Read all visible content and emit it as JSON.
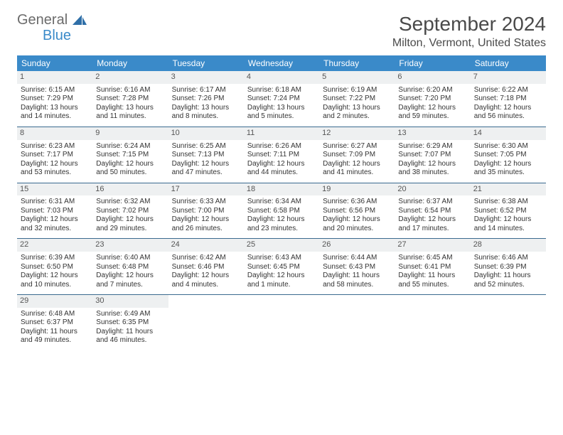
{
  "logo": {
    "text1": "General",
    "text2": "Blue"
  },
  "title": "September 2024",
  "location": "Milton, Vermont, United States",
  "colors": {
    "header_bg": "#3a8ac9",
    "header_text": "#ffffff",
    "daynum_bg": "#eef0f1",
    "rule": "#3a6a8f",
    "body_text": "#333333"
  },
  "weekdays": [
    "Sunday",
    "Monday",
    "Tuesday",
    "Wednesday",
    "Thursday",
    "Friday",
    "Saturday"
  ],
  "weeks": [
    [
      {
        "n": "1",
        "sr": "Sunrise: 6:15 AM",
        "ss": "Sunset: 7:29 PM",
        "d1": "Daylight: 13 hours",
        "d2": "and 14 minutes."
      },
      {
        "n": "2",
        "sr": "Sunrise: 6:16 AM",
        "ss": "Sunset: 7:28 PM",
        "d1": "Daylight: 13 hours",
        "d2": "and 11 minutes."
      },
      {
        "n": "3",
        "sr": "Sunrise: 6:17 AM",
        "ss": "Sunset: 7:26 PM",
        "d1": "Daylight: 13 hours",
        "d2": "and 8 minutes."
      },
      {
        "n": "4",
        "sr": "Sunrise: 6:18 AM",
        "ss": "Sunset: 7:24 PM",
        "d1": "Daylight: 13 hours",
        "d2": "and 5 minutes."
      },
      {
        "n": "5",
        "sr": "Sunrise: 6:19 AM",
        "ss": "Sunset: 7:22 PM",
        "d1": "Daylight: 13 hours",
        "d2": "and 2 minutes."
      },
      {
        "n": "6",
        "sr": "Sunrise: 6:20 AM",
        "ss": "Sunset: 7:20 PM",
        "d1": "Daylight: 12 hours",
        "d2": "and 59 minutes."
      },
      {
        "n": "7",
        "sr": "Sunrise: 6:22 AM",
        "ss": "Sunset: 7:18 PM",
        "d1": "Daylight: 12 hours",
        "d2": "and 56 minutes."
      }
    ],
    [
      {
        "n": "8",
        "sr": "Sunrise: 6:23 AM",
        "ss": "Sunset: 7:17 PM",
        "d1": "Daylight: 12 hours",
        "d2": "and 53 minutes."
      },
      {
        "n": "9",
        "sr": "Sunrise: 6:24 AM",
        "ss": "Sunset: 7:15 PM",
        "d1": "Daylight: 12 hours",
        "d2": "and 50 minutes."
      },
      {
        "n": "10",
        "sr": "Sunrise: 6:25 AM",
        "ss": "Sunset: 7:13 PM",
        "d1": "Daylight: 12 hours",
        "d2": "and 47 minutes."
      },
      {
        "n": "11",
        "sr": "Sunrise: 6:26 AM",
        "ss": "Sunset: 7:11 PM",
        "d1": "Daylight: 12 hours",
        "d2": "and 44 minutes."
      },
      {
        "n": "12",
        "sr": "Sunrise: 6:27 AM",
        "ss": "Sunset: 7:09 PM",
        "d1": "Daylight: 12 hours",
        "d2": "and 41 minutes."
      },
      {
        "n": "13",
        "sr": "Sunrise: 6:29 AM",
        "ss": "Sunset: 7:07 PM",
        "d1": "Daylight: 12 hours",
        "d2": "and 38 minutes."
      },
      {
        "n": "14",
        "sr": "Sunrise: 6:30 AM",
        "ss": "Sunset: 7:05 PM",
        "d1": "Daylight: 12 hours",
        "d2": "and 35 minutes."
      }
    ],
    [
      {
        "n": "15",
        "sr": "Sunrise: 6:31 AM",
        "ss": "Sunset: 7:03 PM",
        "d1": "Daylight: 12 hours",
        "d2": "and 32 minutes."
      },
      {
        "n": "16",
        "sr": "Sunrise: 6:32 AM",
        "ss": "Sunset: 7:02 PM",
        "d1": "Daylight: 12 hours",
        "d2": "and 29 minutes."
      },
      {
        "n": "17",
        "sr": "Sunrise: 6:33 AM",
        "ss": "Sunset: 7:00 PM",
        "d1": "Daylight: 12 hours",
        "d2": "and 26 minutes."
      },
      {
        "n": "18",
        "sr": "Sunrise: 6:34 AM",
        "ss": "Sunset: 6:58 PM",
        "d1": "Daylight: 12 hours",
        "d2": "and 23 minutes."
      },
      {
        "n": "19",
        "sr": "Sunrise: 6:36 AM",
        "ss": "Sunset: 6:56 PM",
        "d1": "Daylight: 12 hours",
        "d2": "and 20 minutes."
      },
      {
        "n": "20",
        "sr": "Sunrise: 6:37 AM",
        "ss": "Sunset: 6:54 PM",
        "d1": "Daylight: 12 hours",
        "d2": "and 17 minutes."
      },
      {
        "n": "21",
        "sr": "Sunrise: 6:38 AM",
        "ss": "Sunset: 6:52 PM",
        "d1": "Daylight: 12 hours",
        "d2": "and 14 minutes."
      }
    ],
    [
      {
        "n": "22",
        "sr": "Sunrise: 6:39 AM",
        "ss": "Sunset: 6:50 PM",
        "d1": "Daylight: 12 hours",
        "d2": "and 10 minutes."
      },
      {
        "n": "23",
        "sr": "Sunrise: 6:40 AM",
        "ss": "Sunset: 6:48 PM",
        "d1": "Daylight: 12 hours",
        "d2": "and 7 minutes."
      },
      {
        "n": "24",
        "sr": "Sunrise: 6:42 AM",
        "ss": "Sunset: 6:46 PM",
        "d1": "Daylight: 12 hours",
        "d2": "and 4 minutes."
      },
      {
        "n": "25",
        "sr": "Sunrise: 6:43 AM",
        "ss": "Sunset: 6:45 PM",
        "d1": "Daylight: 12 hours",
        "d2": "and 1 minute."
      },
      {
        "n": "26",
        "sr": "Sunrise: 6:44 AM",
        "ss": "Sunset: 6:43 PM",
        "d1": "Daylight: 11 hours",
        "d2": "and 58 minutes."
      },
      {
        "n": "27",
        "sr": "Sunrise: 6:45 AM",
        "ss": "Sunset: 6:41 PM",
        "d1": "Daylight: 11 hours",
        "d2": "and 55 minutes."
      },
      {
        "n": "28",
        "sr": "Sunrise: 6:46 AM",
        "ss": "Sunset: 6:39 PM",
        "d1": "Daylight: 11 hours",
        "d2": "and 52 minutes."
      }
    ],
    [
      {
        "n": "29",
        "sr": "Sunrise: 6:48 AM",
        "ss": "Sunset: 6:37 PM",
        "d1": "Daylight: 11 hours",
        "d2": "and 49 minutes."
      },
      {
        "n": "30",
        "sr": "Sunrise: 6:49 AM",
        "ss": "Sunset: 6:35 PM",
        "d1": "Daylight: 11 hours",
        "d2": "and 46 minutes."
      },
      null,
      null,
      null,
      null,
      null
    ]
  ]
}
